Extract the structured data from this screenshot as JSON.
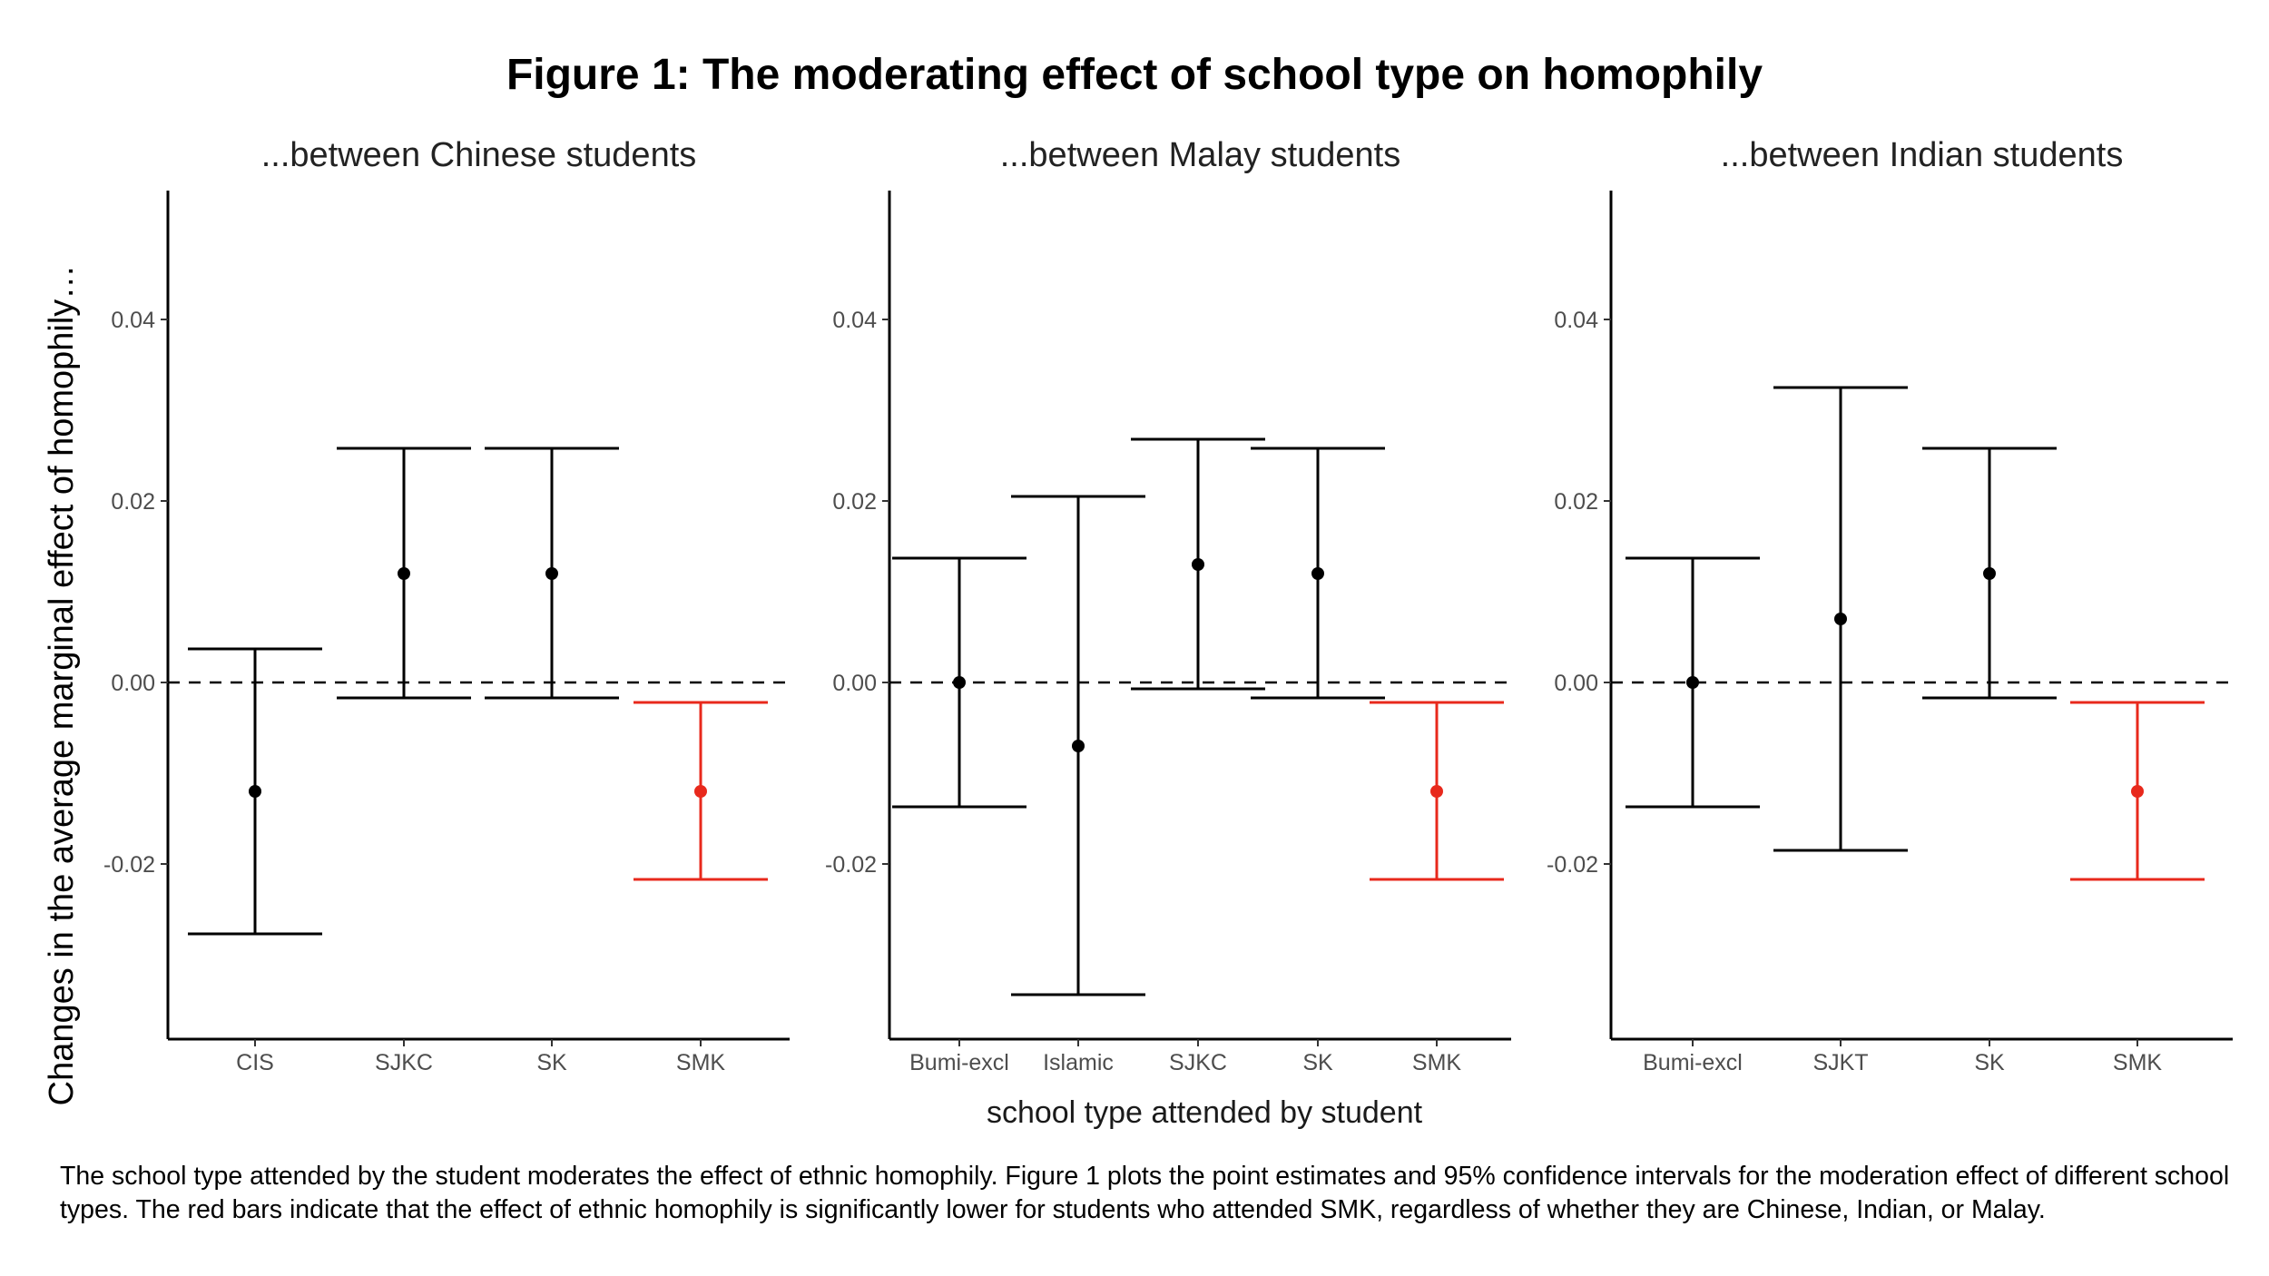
{
  "title": "Figure 1: The moderating effect of school type on homophily",
  "caption": "The school type attended by the student moderates the effect of ethnic homophily. Figure 1 plots the point estimates and 95% confidence intervals for the moderation effect of different school types. The red bars indicate that the effect of ethnic homophily is significantly lower for students who attended SMK, regardless of whether they are Chinese, Indian, or Malay.",
  "colors": {
    "default": "#000000",
    "significant": "#e8291c"
  },
  "chart_data": {
    "type": "errorbar",
    "ylabel": "Changes in the average marginal effect of homophily…",
    "xlabel": "school type attended by student",
    "ylim": [
      -0.039,
      0.054
    ],
    "yticks": [
      "-0.02",
      "0.00",
      "0.02",
      "0.04"
    ],
    "reference_line": {
      "y": 0,
      "style": "dashed"
    },
    "grid": false,
    "panels": [
      {
        "title": "...between Chinese students",
        "categories": [
          "CIS",
          "SJKC",
          "SK",
          "SMK"
        ],
        "estimates": [
          -0.012,
          0.012,
          0.012,
          -0.012
        ],
        "lower": [
          -0.0277,
          -0.0017,
          -0.0017,
          -0.0217
        ],
        "upper": [
          0.0037,
          0.0258,
          0.0258,
          -0.0022
        ],
        "significant": [
          false,
          false,
          false,
          true
        ]
      },
      {
        "title": "...between Malay students",
        "categories": [
          "Bumi-excl",
          "Islamic",
          "SJKC",
          "SK",
          "SMK"
        ],
        "estimates": [
          0.0,
          -0.007,
          0.013,
          0.012,
          -0.012
        ],
        "lower": [
          -0.0137,
          -0.0344,
          -0.0007,
          -0.0017,
          -0.0217
        ],
        "upper": [
          0.0137,
          0.0205,
          0.0268,
          0.0258,
          -0.0022
        ],
        "significant": [
          false,
          false,
          false,
          false,
          true
        ]
      },
      {
        "title": "...between Indian students",
        "categories": [
          "Bumi-excl",
          "SJKT",
          "SK",
          "SMK"
        ],
        "estimates": [
          0.0,
          0.007,
          0.012,
          -0.012
        ],
        "lower": [
          -0.0137,
          -0.0185,
          -0.0017,
          -0.0217
        ],
        "upper": [
          0.0137,
          0.0325,
          0.0258,
          -0.0022
        ],
        "significant": [
          false,
          false,
          false,
          true
        ]
      }
    ]
  }
}
